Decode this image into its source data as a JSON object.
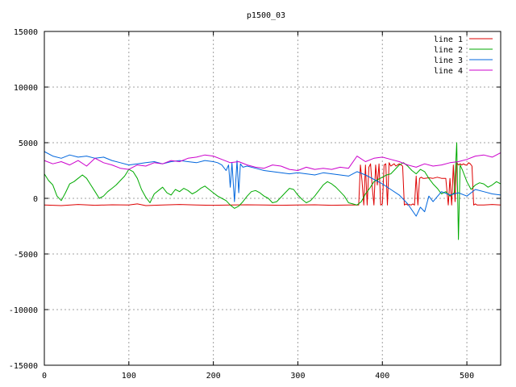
{
  "chart_data": {
    "type": "line",
    "title": "p1500_03",
    "xlabel": "",
    "ylabel": "",
    "xlim": [
      0,
      540
    ],
    "ylim": [
      -15000,
      15000
    ],
    "x_ticks": [
      0,
      100,
      200,
      300,
      400,
      500
    ],
    "y_ticks": [
      -15000,
      -10000,
      -5000,
      0,
      5000,
      10000,
      15000
    ],
    "grid": true,
    "legend_position": "top-right",
    "series": [
      {
        "name": "line 1",
        "color": "#dd0000",
        "x": [
          0,
          20,
          40,
          60,
          80,
          100,
          110,
          120,
          140,
          160,
          180,
          200,
          220,
          240,
          260,
          280,
          300,
          320,
          340,
          360,
          372,
          374,
          376,
          378,
          380,
          382,
          384,
          386,
          388,
          390,
          392,
          394,
          396,
          398,
          400,
          402,
          404,
          406,
          408,
          410,
          412,
          414,
          416,
          418,
          420,
          422,
          424,
          426,
          428,
          430,
          432,
          434,
          436,
          438,
          440,
          442,
          444,
          446,
          448,
          450,
          455,
          460,
          465,
          470,
          475,
          478,
          480,
          482,
          484,
          486,
          488,
          490,
          492,
          494,
          496,
          498,
          500,
          502,
          504,
          506,
          508,
          510,
          512,
          520,
          530,
          540
        ],
        "y": [
          -600,
          -650,
          -550,
          -620,
          -580,
          -600,
          -500,
          -650,
          -600,
          -550,
          -600,
          -620,
          -600,
          -580,
          -600,
          -620,
          -600,
          -580,
          -620,
          -600,
          -600,
          3000,
          1500,
          -600,
          3000,
          -600,
          2800,
          3100,
          1000,
          -600,
          3000,
          1200,
          3100,
          -600,
          -500,
          3000,
          3100,
          -600,
          3200,
          2900,
          3000,
          3100,
          2900,
          3000,
          3100,
          3000,
          2900,
          -600,
          -500,
          -600,
          -550,
          -600,
          -500,
          -600,
          2000,
          -600,
          1800,
          1900,
          1800,
          1800,
          1850,
          1800,
          1900,
          1800,
          1800,
          -600,
          1800,
          -600,
          3000,
          -300,
          3200,
          3000,
          3100,
          3000,
          3100,
          3000,
          3000,
          3200,
          3100,
          2900,
          -600,
          -500,
          -600,
          -600,
          -550,
          -600
        ]
      },
      {
        "name": "line 2",
        "color": "#00aa00",
        "x": [
          0,
          5,
          10,
          15,
          20,
          25,
          30,
          35,
          40,
          45,
          50,
          55,
          60,
          65,
          70,
          75,
          80,
          85,
          90,
          95,
          100,
          105,
          110,
          115,
          120,
          125,
          130,
          135,
          140,
          145,
          150,
          155,
          160,
          165,
          170,
          175,
          180,
          185,
          190,
          195,
          200,
          205,
          210,
          215,
          220,
          225,
          230,
          235,
          240,
          245,
          250,
          255,
          260,
          265,
          270,
          275,
          280,
          285,
          290,
          295,
          300,
          305,
          310,
          315,
          320,
          325,
          330,
          335,
          340,
          345,
          350,
          355,
          360,
          365,
          370,
          375,
          380,
          385,
          390,
          395,
          400,
          405,
          410,
          415,
          420,
          425,
          430,
          435,
          440,
          445,
          450,
          455,
          460,
          465,
          470,
          475,
          480,
          485,
          488,
          490,
          492,
          495,
          500,
          505,
          510,
          515,
          520,
          525,
          530,
          535,
          540
        ],
        "y": [
          2200,
          1600,
          1200,
          200,
          -200,
          500,
          1300,
          1500,
          1800,
          2100,
          1800,
          1200,
          600,
          0,
          200,
          600,
          900,
          1200,
          1600,
          2000,
          2600,
          2400,
          1800,
          800,
          100,
          -400,
          400,
          700,
          1000,
          500,
          300,
          800,
          600,
          900,
          700,
          400,
          600,
          900,
          1100,
          800,
          500,
          200,
          0,
          -200,
          -600,
          -900,
          -700,
          -300,
          200,
          600,
          700,
          500,
          200,
          0,
          -400,
          -300,
          100,
          500,
          900,
          800,
          300,
          -100,
          -400,
          -200,
          200,
          700,
          1200,
          1500,
          1300,
          1000,
          600,
          200,
          -400,
          -500,
          -600,
          -300,
          400,
          900,
          1500,
          1700,
          1900,
          2100,
          2200,
          2600,
          3000,
          3200,
          2900,
          2500,
          2200,
          2600,
          2400,
          1800,
          1300,
          900,
          400,
          600,
          200,
          500,
          5000,
          -3700,
          3000,
          2500,
          1500,
          800,
          1200,
          1400,
          1300,
          1000,
          1200,
          1500,
          1300
        ]
      },
      {
        "name": "line 3",
        "color": "#0066dd",
        "x": [
          0,
          10,
          20,
          30,
          40,
          50,
          60,
          70,
          80,
          90,
          100,
          110,
          120,
          130,
          140,
          150,
          160,
          170,
          180,
          190,
          200,
          205,
          210,
          215,
          218,
          220,
          222,
          225,
          228,
          230,
          232,
          235,
          240,
          250,
          260,
          270,
          280,
          290,
          300,
          310,
          320,
          330,
          340,
          350,
          360,
          370,
          380,
          390,
          400,
          410,
          420,
          430,
          440,
          445,
          450,
          455,
          460,
          470,
          480,
          490,
          500,
          510,
          520,
          530,
          540
        ],
        "y": [
          4200,
          3800,
          3600,
          3900,
          3700,
          3800,
          3600,
          3700,
          3400,
          3200,
          3000,
          3100,
          3200,
          3300,
          3100,
          3300,
          3400,
          3300,
          3200,
          3400,
          3300,
          3200,
          3000,
          2500,
          3000,
          1000,
          3200,
          -300,
          3400,
          500,
          3100,
          2800,
          2900,
          2700,
          2500,
          2400,
          2300,
          2200,
          2300,
          2200,
          2100,
          2300,
          2200,
          2100,
          2000,
          2400,
          2100,
          1700,
          1300,
          800,
          300,
          -500,
          -1600,
          -800,
          -1200,
          200,
          -300,
          600,
          300,
          500,
          200,
          800,
          600,
          400,
          300
        ]
      },
      {
        "name": "line 4",
        "color": "#cc00cc",
        "x": [
          0,
          10,
          20,
          30,
          40,
          50,
          60,
          70,
          80,
          90,
          100,
          110,
          120,
          130,
          140,
          150,
          160,
          170,
          180,
          190,
          200,
          210,
          220,
          230,
          240,
          250,
          260,
          270,
          280,
          290,
          300,
          310,
          320,
          330,
          340,
          350,
          360,
          370,
          380,
          390,
          400,
          410,
          420,
          430,
          440,
          450,
          460,
          470,
          480,
          490,
          500,
          510,
          520,
          530,
          540
        ],
        "y": [
          3400,
          3100,
          3300,
          3000,
          3400,
          2900,
          3600,
          3200,
          3000,
          2700,
          2600,
          3000,
          2900,
          3200,
          3100,
          3400,
          3300,
          3600,
          3700,
          3900,
          3800,
          3500,
          3200,
          3300,
          3000,
          2800,
          2700,
          3000,
          2900,
          2600,
          2500,
          2800,
          2600,
          2700,
          2600,
          2800,
          2700,
          3800,
          3300,
          3600,
          3700,
          3500,
          3300,
          3000,
          2800,
          3100,
          2900,
          3000,
          3200,
          3300,
          3500,
          3800,
          3900,
          3700,
          4100
        ]
      }
    ]
  }
}
